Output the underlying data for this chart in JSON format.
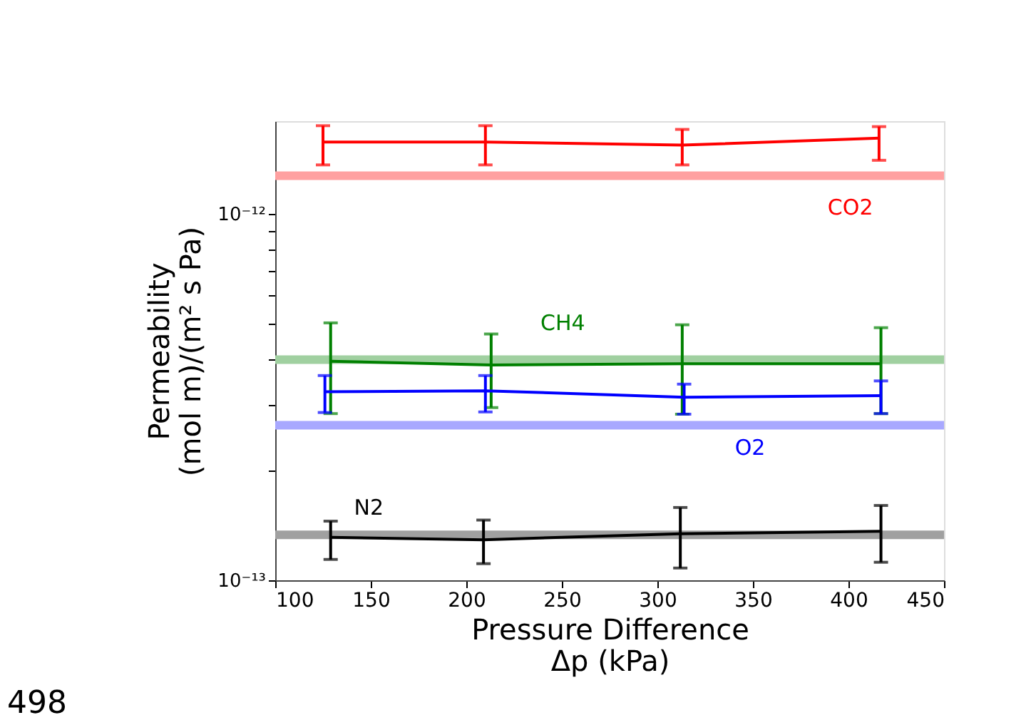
{
  "chart_data": {
    "type": "line",
    "xlabel": "Pressure Difference\nΔp (kPa)",
    "ylabel": "Permeability\n(mol m)/(m² s Pa)",
    "log": true,
    "grid": false,
    "marker": "none",
    "line_style": "solid",
    "xlim": [
      100,
      450
    ],
    "xticks": [
      100,
      150,
      200,
      250,
      300,
      350,
      400,
      450
    ],
    "ylim": [
      1e-13,
      1.79e-12
    ],
    "yticks": [
      {
        "value": 1e-13,
        "label": "10⁻¹³"
      },
      {
        "value": 2e-13,
        "label": null
      },
      {
        "value": 3e-13,
        "label": null
      },
      {
        "value": 4e-13,
        "label": null
      },
      {
        "value": 5e-13,
        "label": null
      },
      {
        "value": 6e-13,
        "label": null
      },
      {
        "value": 7e-13,
        "label": null
      },
      {
        "value": 8e-13,
        "label": null
      },
      {
        "value": 9e-13,
        "label": null
      },
      {
        "value": 1e-12,
        "label": "10⁻¹²"
      }
    ],
    "series": [
      {
        "color": "#ff0000",
        "x": [
          125,
          210,
          313,
          416
        ],
        "values": [
          1.57e-12,
          1.57e-12,
          1.54e-12,
          1.61e-12
        ],
        "errors": [
          [
            1.36e-12,
            1.74e-12
          ],
          [
            1.36e-12,
            1.74e-12
          ],
          [
            1.36e-12,
            1.7e-12
          ],
          [
            1.4e-12,
            1.73e-12
          ]
        ]
      },
      {
        "color": "#008000",
        "x": [
          129,
          213,
          313,
          417
        ],
        "values": [
          3.96e-13,
          3.87e-13,
          3.9e-13,
          3.9e-13
        ],
        "errors": [
          [
            2.85e-13,
            5.04e-13
          ],
          [
            2.96e-13,
            4.7e-13
          ],
          [
            2.84e-13,
            4.98e-13
          ],
          [
            2.85e-13,
            4.89e-13
          ]
        ]
      },
      {
        "color": "#0000ff",
        "x": [
          126,
          210,
          314,
          417
        ],
        "values": [
          3.27e-13,
          3.29e-13,
          3.16e-13,
          3.19e-13
        ],
        "errors": [
          [
            2.87e-13,
            3.62e-13
          ],
          [
            2.88e-13,
            3.62e-13
          ],
          [
            2.84e-13,
            3.43e-13
          ],
          [
            2.85e-13,
            3.5e-13
          ]
        ]
      },
      {
        "color": "#000000",
        "x": [
          129,
          209,
          312,
          417
        ],
        "values": [
          1.31e-13,
          1.29e-13,
          1.34e-13,
          1.36e-13
        ],
        "errors": [
          [
            1.14e-13,
            1.45e-13
          ],
          [
            1.11e-13,
            1.46e-13
          ],
          [
            1.08e-13,
            1.58e-13
          ],
          [
            1.12e-13,
            1.6e-13
          ]
        ]
      }
    ],
    "ref_lines": [
      {
        "axis": "y",
        "value": 1.27e-12,
        "color": "#ffa0a0",
        "label": "CO2"
      },
      {
        "axis": "y",
        "value": 4e-13,
        "color": "#a0d0a0",
        "label": "CH4"
      },
      {
        "axis": "y",
        "value": 2.65e-13,
        "color": "#a8a8ff",
        "label": "O2"
      },
      {
        "axis": "y",
        "value": 1.33e-13,
        "color": "#a0a0a0",
        "label": "N2"
      }
    ],
    "annotations": [
      "498"
    ]
  }
}
